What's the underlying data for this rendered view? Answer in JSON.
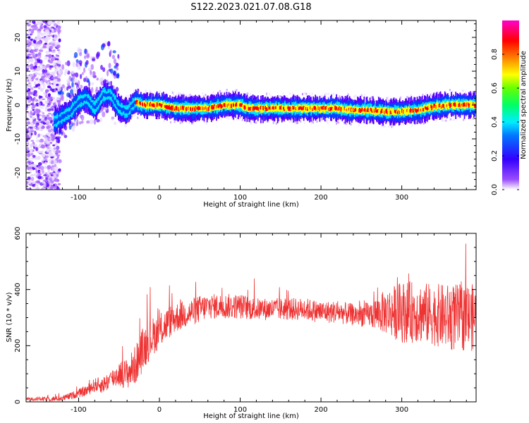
{
  "figure_title": "S122.2023.021.07.08.G18",
  "chart_data": [
    {
      "type": "heatmap",
      "title": "S122.2023.021.07.08.G18",
      "xlabel": "Height of straight line (km)",
      "ylabel": "Frequency (Hz)",
      "xlim": [
        -165,
        392
      ],
      "ylim": [
        -25,
        25
      ],
      "xticks": [
        -100,
        0,
        100,
        200,
        300
      ],
      "yticks": [
        -20,
        -10,
        0,
        10,
        20
      ],
      "grid": false,
      "colorbar": {
        "label": "Normalized spectral amplitude",
        "range": [
          0,
          1
        ],
        "ticks": [
          "0.0",
          "0.2",
          "0.4",
          "0.6",
          "0.8"
        ],
        "tick_values": [
          0.0,
          0.2,
          0.4,
          0.6,
          0.8
        ],
        "colormap": [
          "#ffffff",
          "#7f00ff",
          "#0000ff",
          "#00ffff",
          "#00ff00",
          "#ffff00",
          "#ff8000",
          "#ff0000",
          "#ff00ff"
        ]
      },
      "ridge": {
        "x": [
          -130,
          -110,
          -100,
          -90,
          -80,
          -70,
          -60,
          -50,
          -40,
          -30,
          -20,
          -10,
          0,
          20,
          40,
          60,
          80,
          100,
          110,
          120,
          150,
          180,
          200,
          220,
          240,
          260,
          280,
          300,
          320,
          340,
          360,
          380,
          392
        ],
        "y": [
          -5,
          -2,
          1,
          2,
          -1,
          3,
          3,
          -1,
          -2,
          1,
          0,
          0,
          0,
          -1,
          -1,
          -1,
          0,
          0,
          -1,
          -1,
          -1,
          -1,
          -1,
          -1,
          -1.5,
          -1.5,
          -2,
          -2,
          -1.5,
          -0.5,
          0,
          0,
          0
        ]
      }
    },
    {
      "type": "line",
      "xlabel": "Height of straight line (km)",
      "ylabel": "SNR (10 * v/v)",
      "xlim": [
        -165,
        392
      ],
      "ylim": [
        0,
        600
      ],
      "xticks": [
        -100,
        0,
        100,
        200,
        300
      ],
      "yticks": [
        0,
        200,
        400,
        600
      ],
      "grid": false,
      "series": [
        {
          "color": "#ee3333",
          "x": [
            -165,
            -140,
            -120,
            -100,
            -90,
            -80,
            -70,
            -60,
            -50,
            -40,
            -30,
            -20,
            -10,
            0,
            10,
            20,
            30,
            40,
            50,
            60,
            80,
            100,
            120,
            140,
            160,
            180,
            200,
            220,
            240,
            260,
            280,
            300,
            320,
            340,
            360,
            380,
            392
          ],
          "y": [
            10,
            10,
            12,
            30,
            40,
            60,
            60,
            80,
            100,
            100,
            130,
            190,
            230,
            250,
            280,
            300,
            310,
            320,
            330,
            340,
            340,
            340,
            330,
            330,
            330,
            330,
            320,
            320,
            310,
            310,
            320,
            320,
            320,
            310,
            300,
            300,
            300
          ],
          "spread": [
            5,
            8,
            10,
            15,
            20,
            25,
            30,
            35,
            45,
            55,
            70,
            80,
            70,
            60,
            60,
            55,
            50,
            50,
            50,
            45,
            45,
            45,
            40,
            40,
            40,
            40,
            40,
            40,
            40,
            45,
            80,
            110,
            110,
            110,
            120,
            120,
            120
          ]
        }
      ]
    }
  ]
}
